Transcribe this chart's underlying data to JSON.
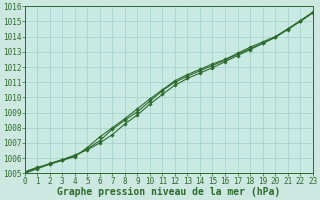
{
  "xlabel": "Graphe pression niveau de la mer (hPa)",
  "ylim": [
    1005,
    1016
  ],
  "xlim": [
    0,
    23
  ],
  "yticks": [
    1005,
    1006,
    1007,
    1008,
    1009,
    1010,
    1011,
    1012,
    1013,
    1014,
    1015,
    1016
  ],
  "xticks": [
    0,
    1,
    2,
    3,
    4,
    5,
    6,
    7,
    8,
    9,
    10,
    11,
    12,
    13,
    14,
    15,
    16,
    17,
    18,
    19,
    20,
    21,
    22,
    23
  ],
  "line_color": "#2d6a2d",
  "marker_color": "#2d6a2d",
  "line1": [
    1005.1,
    1005.4,
    1005.6,
    1005.9,
    1006.2,
    1006.55,
    1007.0,
    1007.55,
    1008.25,
    1008.85,
    1009.55,
    1010.2,
    1010.8,
    1011.25,
    1011.6,
    1011.95,
    1012.35,
    1012.75,
    1013.15,
    1013.55,
    1013.95,
    1014.5,
    1015.05,
    1015.6
  ],
  "line2": [
    1005.05,
    1005.35,
    1005.65,
    1005.9,
    1006.15,
    1006.6,
    1007.15,
    1007.9,
    1008.5,
    1009.05,
    1009.75,
    1010.45,
    1011.0,
    1011.4,
    1011.75,
    1012.1,
    1012.45,
    1012.85,
    1013.2,
    1013.55,
    1013.95,
    1014.45,
    1015.0,
    1015.55
  ],
  "line3": [
    1005.0,
    1005.3,
    1005.6,
    1005.85,
    1006.1,
    1006.7,
    1007.4,
    1008.0,
    1008.6,
    1009.25,
    1009.9,
    1010.5,
    1011.1,
    1011.5,
    1011.85,
    1012.2,
    1012.5,
    1012.9,
    1013.3,
    1013.65,
    1014.0,
    1014.5,
    1015.0,
    1015.6
  ],
  "fig_bg_color": "#cce8e0",
  "ax_bg_color": "#c8eae2",
  "grid_color": "#aad4cc",
  "tick_fontsize": 5.5,
  "xlabel_fontsize": 7.0
}
